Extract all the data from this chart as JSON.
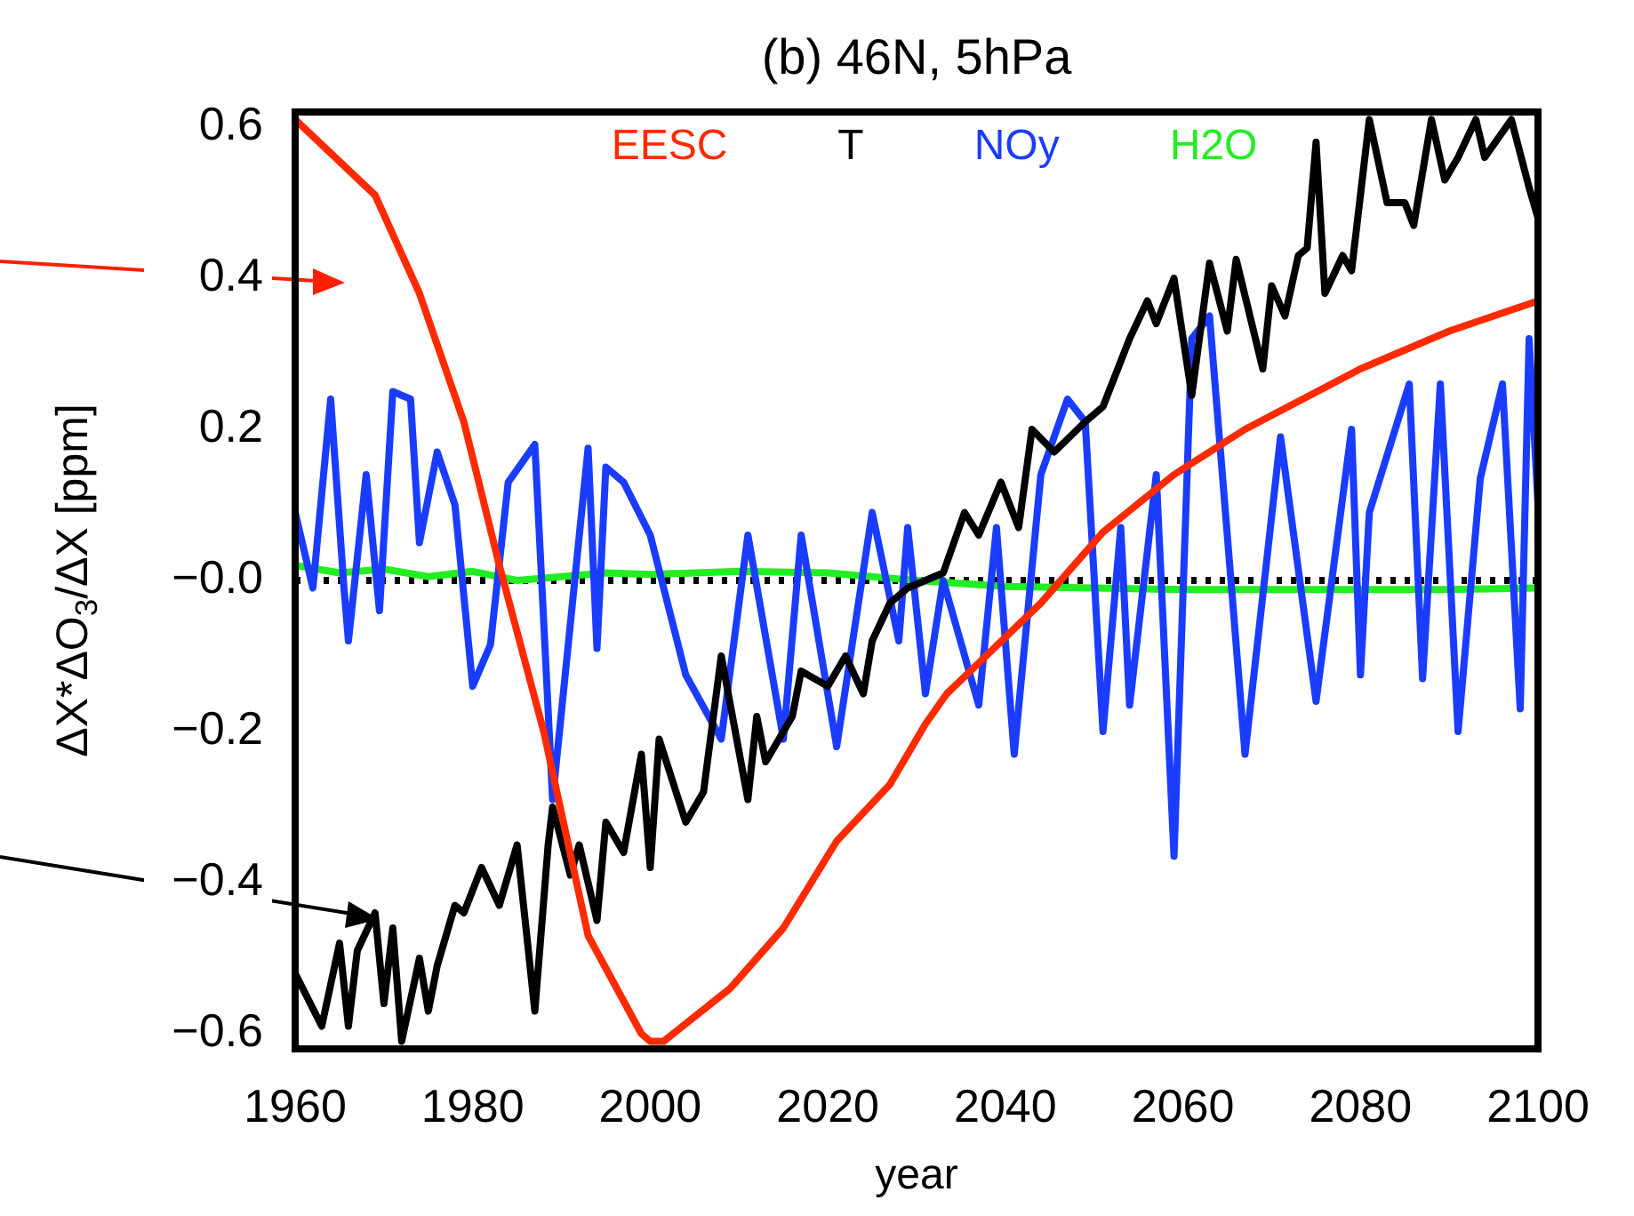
{
  "chart_data": {
    "type": "line",
    "title": "(b) 46N, 5hPa",
    "xlabel": "year",
    "ylabel": "ΔX*ΔO$_{3}$/ΔX [ppm]",
    "xlim": [
      1960,
      2100
    ],
    "xticks": [
      1960,
      1980,
      2000,
      2020,
      2040,
      2060,
      2080,
      2100
    ],
    "ylim": [
      -0.62,
      0.62
    ],
    "yticks": [
      {
        "value": -0.6,
        "label": "−0.6"
      },
      {
        "value": -0.4,
        "label": "−0.4"
      },
      {
        "value": -0.2,
        "label": "−0.2"
      },
      {
        "value": 0,
        "label": "−0.0"
      },
      {
        "value": 0.2,
        "label": "0.2"
      },
      {
        "value": 0.4,
        "label": "0.4"
      },
      {
        "value": 0.6,
        "label": "0.6"
      }
    ],
    "grid": false,
    "legend": "top",
    "marker": "none",
    "line_style": "solid",
    "ref_lines": [
      {
        "axis": "y",
        "value": 0,
        "color": "#000000",
        "line_style": "dotted"
      }
    ],
    "series": [
      {
        "name": "EESC",
        "color": "#ff2a00",
        "x": [
          1960,
          1969,
          1974,
          1979,
          1983,
          1988,
          1993,
          1999,
          2000,
          2001.5,
          2009,
          2015,
          2021,
          2027,
          2031,
          2033.4,
          2044,
          2051,
          2059,
          2067,
          2080,
          2090,
          2100
        ],
        "values": [
          0.61,
          0.51,
          0.38,
          0.21,
          0.02,
          -0.2,
          -0.47,
          -0.6,
          -0.61,
          -0.61,
          -0.54,
          -0.46,
          -0.345,
          -0.27,
          -0.19,
          -0.15,
          -0.03,
          0.064,
          0.14,
          0.2,
          0.28,
          0.33,
          0.37
        ]
      },
      {
        "name": "T",
        "color": "#000000",
        "x": [
          1960,
          1963,
          1965,
          1966,
          1967,
          1969,
          1970,
          1971,
          1972,
          1974,
          1975,
          1976,
          1978,
          1979,
          1981,
          1983,
          1985,
          1987,
          1988.5,
          1989,
          1991,
          1992,
          1994,
          1995,
          1997,
          1999,
          2000,
          2001,
          2004,
          2006,
          2008,
          2011,
          2012,
          2013,
          2016,
          2017,
          2020,
          2022,
          2024,
          2025,
          2027,
          2029,
          2033,
          2035.4,
          2037,
          2039.5,
          2041.5,
          2043,
          2045.5,
          2049,
          2051,
          2054,
          2056,
          2057,
          2059,
          2061,
          2063,
          2065,
          2066,
          2069,
          2070,
          2071.5,
          2073,
          2074,
          2075,
          2076,
          2078,
          2079,
          2081,
          2083,
          2085,
          2086,
          2088,
          2089.5,
          2091,
          2093,
          2094,
          2097,
          2099,
          2100
        ],
        "values": [
          -0.52,
          -0.59,
          -0.48,
          -0.59,
          -0.49,
          -0.44,
          -0.56,
          -0.46,
          -0.61,
          -0.5,
          -0.57,
          -0.51,
          -0.43,
          -0.44,
          -0.38,
          -0.43,
          -0.35,
          -0.57,
          -0.35,
          -0.3,
          -0.39,
          -0.35,
          -0.45,
          -0.32,
          -0.36,
          -0.23,
          -0.38,
          -0.21,
          -0.32,
          -0.28,
          -0.1,
          -0.29,
          -0.18,
          -0.24,
          -0.18,
          -0.12,
          -0.14,
          -0.1,
          -0.15,
          -0.08,
          -0.03,
          -0.01,
          0.01,
          0.09,
          0.06,
          0.13,
          0.07,
          0.2,
          0.17,
          0.21,
          0.23,
          0.32,
          0.37,
          0.34,
          0.4,
          0.245,
          0.42,
          0.33,
          0.425,
          0.28,
          0.39,
          0.35,
          0.43,
          0.44,
          0.58,
          0.38,
          0.43,
          0.41,
          0.61,
          0.5,
          0.5,
          0.47,
          0.61,
          0.53,
          0.56,
          0.61,
          0.56,
          0.61,
          0.52,
          0.48
        ]
      },
      {
        "name": "NOy",
        "color": "#1a3cff",
        "x": [
          1960,
          1962,
          1964,
          1965.5,
          1966,
          1968,
          1969.5,
          1971,
          1973,
          1974,
          1976,
          1978,
          1980,
          1982,
          1984,
          1987,
          1989,
          1993,
          1994,
          1995,
          1997,
          2000,
          2004,
          2008,
          2011,
          2015,
          2017,
          2021,
          2025,
          2028,
          2029,
          2031,
          2033,
          2037,
          2039,
          2041,
          2044,
          2047,
          2049,
          2051,
          2053,
          2054,
          2057,
          2059,
          2061,
          2063,
          2067,
          2071,
          2075,
          2079,
          2080,
          2081,
          2085.5,
          2087,
          2089,
          2091,
          2093.5,
          2096,
          2098,
          2099,
          2100
        ],
        "values": [
          0.09,
          -0.01,
          0.24,
          -0.01,
          -0.08,
          0.14,
          -0.04,
          0.25,
          0.24,
          0.05,
          0.17,
          0.1,
          -0.14,
          -0.085,
          0.13,
          0.18,
          -0.29,
          0.175,
          -0.09,
          0.15,
          0.13,
          0.06,
          -0.125,
          -0.21,
          0.06,
          -0.21,
          0.06,
          -0.22,
          0.09,
          -0.08,
          0.07,
          -0.15,
          0.0,
          -0.165,
          0.07,
          -0.23,
          0.14,
          0.24,
          0.21,
          -0.2,
          0.07,
          -0.165,
          0.14,
          -0.365,
          0.32,
          0.35,
          -0.23,
          0.19,
          -0.16,
          0.2,
          -0.125,
          0.09,
          0.26,
          -0.13,
          0.26,
          -0.2,
          0.135,
          0.26,
          -0.17,
          0.32,
          0.1
        ]
      },
      {
        "name": "H2O",
        "color": "#22ee22",
        "x": [
          1960,
          1965,
          1970,
          1975,
          1980,
          1985,
          1990,
          1995,
          2000,
          2010,
          2020,
          2030,
          2040,
          2050,
          2060,
          2070,
          2080,
          2090,
          2100
        ],
        "values": [
          0.02,
          0.01,
          0.015,
          0.005,
          0.012,
          0.0,
          0.005,
          0.01,
          0.008,
          0.012,
          0.01,
          0.0,
          -0.008,
          -0.01,
          -0.012,
          -0.012,
          -0.012,
          -0.012,
          -0.01
        ]
      }
    ]
  }
}
